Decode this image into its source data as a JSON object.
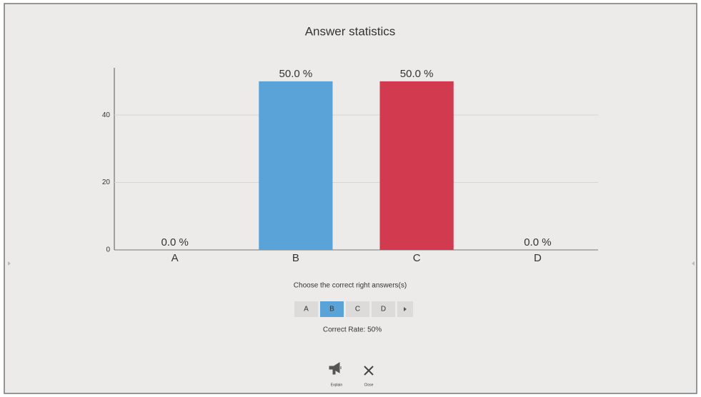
{
  "chart_data": {
    "type": "bar",
    "title": "Answer statistics",
    "categories": [
      "A",
      "B",
      "C",
      "D"
    ],
    "series": [
      {
        "values": [
          0,
          50,
          50,
          0
        ],
        "value_labels": [
          "0.0 %",
          "50.0 %",
          "50.0 %",
          "0.0 %"
        ],
        "colors": [
          "#5aa3d8",
          "#5aa3d8",
          "#d23a50",
          "#5aa3d8"
        ]
      }
    ],
    "ylim": [
      0,
      54
    ],
    "yticks": [
      0,
      20,
      40
    ],
    "grid": true
  },
  "ui": {
    "prompt": "Choose the correct right answers(s)",
    "options": [
      "A",
      "B",
      "C",
      "D"
    ],
    "selected": 1,
    "correct_rate": "Correct Rate: 50%",
    "buttons": [
      "Explain",
      "Close"
    ]
  }
}
